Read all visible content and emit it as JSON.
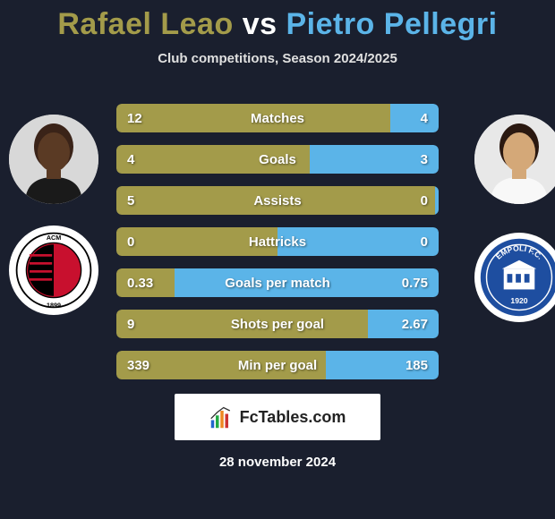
{
  "title": {
    "p1": "Rafael Leao",
    "vs": "vs",
    "p2": "Pietro Pellegri"
  },
  "subtitle": "Club competitions, Season 2024/2025",
  "colors": {
    "p1_fill": "#a39b4a",
    "p2_fill": "#5bb4e8",
    "bg": "#1a1f2e",
    "text": "#ffffff",
    "subtitle": "#e0e0e0"
  },
  "stats": [
    {
      "label": "Matches",
      "v1": "12",
      "v2": "4",
      "w1": 85,
      "w2": 15
    },
    {
      "label": "Goals",
      "v1": "4",
      "v2": "3",
      "w1": 60,
      "w2": 40
    },
    {
      "label": "Assists",
      "v1": "5",
      "v2": "0",
      "w1": 99,
      "w2": 1
    },
    {
      "label": "Hattricks",
      "v1": "0",
      "v2": "0",
      "w1": 50,
      "w2": 50
    },
    {
      "label": "Goals per match",
      "v1": "0.33",
      "v2": "0.75",
      "w1": 18,
      "w2": 82
    },
    {
      "label": "Shots per goal",
      "v1": "9",
      "v2": "2.67",
      "w1": 78,
      "w2": 22
    },
    {
      "label": "Min per goal",
      "v1": "339",
      "v2": "185",
      "w1": 65,
      "w2": 35
    }
  ],
  "brand": "FcTables.com",
  "date": "28 november 2024",
  "clubs": {
    "left_label": "ACM 1899",
    "right_label": "EMPOLI F.C. 1920"
  }
}
